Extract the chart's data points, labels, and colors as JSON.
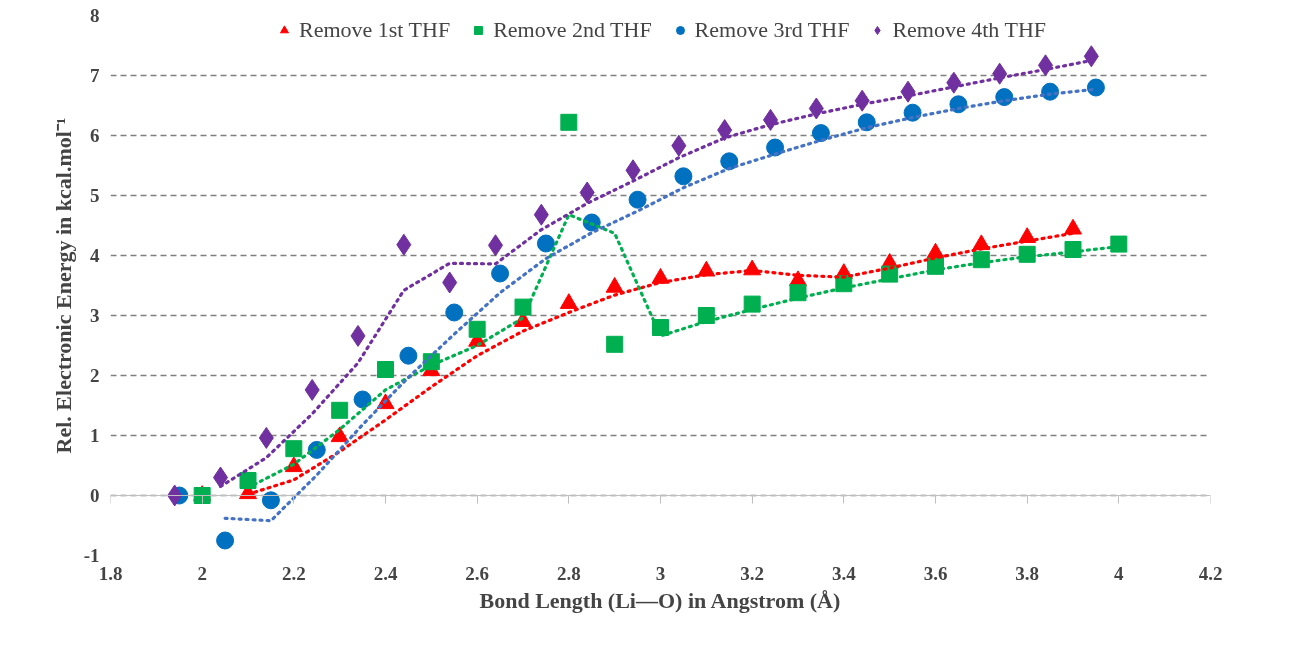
{
  "chart_data": {
    "type": "scatter",
    "xlabel": "Bond Length (Li—O) in Angstrom (Å)",
    "ylabel": "Rel. Electronic Energy in kcal.mol⁻¹",
    "xlim": [
      1.8,
      4.2
    ],
    "xticks": [
      1.8,
      2,
      2.2,
      2.4,
      2.6,
      2.8,
      3,
      3.2,
      3.4,
      3.6,
      3.8,
      4,
      4.2
    ],
    "ylim": [
      -1,
      8
    ],
    "yticks": [
      -1,
      0,
      1,
      2,
      3,
      4,
      5,
      6,
      7,
      8
    ],
    "grid": "y",
    "legend": "top",
    "series": [
      {
        "name": "Remove 1st THF",
        "color": "#ff0000",
        "marker": "triangle",
        "x": [
          2.0,
          2.1,
          2.2,
          2.3,
          2.4,
          2.5,
          2.6,
          2.7,
          2.8,
          2.9,
          3.0,
          3.1,
          3.2,
          3.3,
          3.4,
          3.5,
          3.6,
          3.7,
          3.8,
          3.9
        ],
        "values": [
          0,
          0.03,
          0.48,
          0.98,
          1.53,
          2.08,
          2.57,
          2.9,
          3.2,
          3.47,
          3.62,
          3.74,
          3.76,
          3.58,
          3.7,
          3.87,
          4.04,
          4.18,
          4.3,
          4.44
        ]
      },
      {
        "name": "Remove 2nd THF",
        "color": "#00b050",
        "marker": "square",
        "x": [
          2.0,
          2.1,
          2.2,
          2.3,
          2.4,
          2.5,
          2.6,
          2.7,
          2.8,
          2.9,
          3.0,
          3.1,
          3.2,
          3.3,
          3.4,
          3.5,
          3.6,
          3.7,
          3.8,
          3.9,
          4.0
        ],
        "values": [
          0,
          0.25,
          0.78,
          1.42,
          2.1,
          2.23,
          2.77,
          3.14,
          6.22,
          2.52,
          2.8,
          3.0,
          3.19,
          3.38,
          3.53,
          3.69,
          3.82,
          3.93,
          4.02,
          4.1,
          4.19
        ]
      },
      {
        "name": "Remove 3rd THF",
        "color": "#0070c0",
        "marker": "circle",
        "x": [
          1.95,
          2.05,
          2.15,
          2.25,
          2.35,
          2.45,
          2.55,
          2.65,
          2.75,
          2.85,
          2.95,
          3.05,
          3.15,
          3.25,
          3.35,
          3.45,
          3.55,
          3.65,
          3.75,
          3.85,
          3.95
        ],
        "values": [
          0,
          -0.75,
          -0.08,
          0.76,
          1.6,
          2.33,
          3.05,
          3.7,
          4.2,
          4.55,
          4.93,
          5.32,
          5.57,
          5.8,
          6.04,
          6.22,
          6.38,
          6.52,
          6.64,
          6.73,
          6.8
        ]
      },
      {
        "name": "Remove 4th THF",
        "color": "#7030a0",
        "marker": "diamond",
        "x": [
          1.94,
          2.04,
          2.14,
          2.24,
          2.34,
          2.44,
          2.54,
          2.64,
          2.74,
          2.84,
          2.94,
          3.04,
          3.14,
          3.24,
          3.34,
          3.44,
          3.54,
          3.64,
          3.74,
          3.84,
          3.94
        ],
        "values": [
          0,
          0.3,
          0.96,
          1.76,
          2.66,
          4.18,
          3.55,
          4.17,
          4.68,
          5.05,
          5.42,
          5.83,
          6.09,
          6.26,
          6.45,
          6.58,
          6.73,
          6.88,
          7.03,
          7.17,
          7.32
        ]
      },
      {
        "type": "line",
        "color": "#ff0000",
        "line_style": "dotted",
        "x": [
          2.1,
          2.2,
          2.3,
          2.4,
          2.5,
          2.6,
          2.7,
          2.8,
          2.9,
          3.0,
          3.1,
          3.2,
          3.3,
          3.4,
          3.5,
          3.6,
          3.7,
          3.8,
          3.9
        ],
        "values": [
          0.02,
          0.26,
          0.73,
          1.26,
          1.81,
          2.33,
          2.74,
          3.05,
          3.34,
          3.55,
          3.68,
          3.75,
          3.67,
          3.64,
          3.79,
          3.96,
          4.11,
          4.24,
          4.37
        ]
      },
      {
        "type": "line",
        "color": "#00b050",
        "line_style": "dotted",
        "x": [
          2.1,
          2.2,
          2.3,
          2.4,
          2.5,
          2.6,
          2.7,
          2.8,
          2.9,
          3.0,
          3.1,
          3.2,
          3.3,
          3.4,
          3.5,
          3.6,
          3.7,
          3.8,
          3.9,
          4.0
        ],
        "values": [
          0.13,
          0.52,
          1.1,
          1.76,
          2.17,
          2.5,
          2.96,
          4.68,
          4.37,
          2.66,
          2.9,
          3.1,
          3.29,
          3.46,
          3.61,
          3.76,
          3.88,
          3.98,
          4.06,
          4.15
        ]
      },
      {
        "type": "line",
        "color": "#4472c4",
        "line_style": "dotted",
        "x": [
          2.05,
          2.15,
          2.25,
          2.35,
          2.45,
          2.55,
          2.65,
          2.75,
          2.85,
          2.95,
          3.05,
          3.15,
          3.25,
          3.35,
          3.45,
          3.55,
          3.65,
          3.75,
          3.85,
          3.95
        ],
        "values": [
          -0.38,
          -0.42,
          0.34,
          1.18,
          1.97,
          2.69,
          3.38,
          3.95,
          4.38,
          4.74,
          5.13,
          5.45,
          5.69,
          5.92,
          6.13,
          6.3,
          6.45,
          6.58,
          6.69,
          6.77
        ]
      },
      {
        "type": "line",
        "color": "#7030a0",
        "line_style": "dotted",
        "x": [
          2.04,
          2.14,
          2.24,
          2.34,
          2.44,
          2.54,
          2.64,
          2.74,
          2.84,
          2.94,
          3.04,
          3.14,
          3.24,
          3.34,
          3.44,
          3.54,
          3.64,
          3.74,
          3.84,
          3.94
        ],
        "values": [
          0.15,
          0.63,
          1.36,
          2.21,
          3.42,
          3.87,
          3.86,
          4.43,
          4.87,
          5.24,
          5.63,
          5.96,
          6.18,
          6.36,
          6.52,
          6.66,
          6.81,
          6.96,
          7.1,
          7.25
        ]
      }
    ]
  }
}
